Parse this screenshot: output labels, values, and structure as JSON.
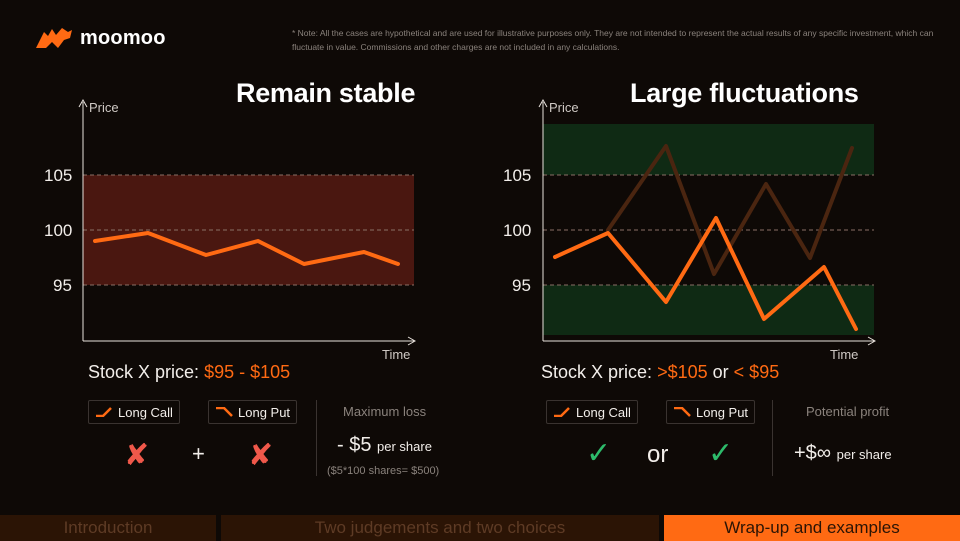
{
  "brand": {
    "name": "moomoo",
    "color": "#ff6a13"
  },
  "note": "* Note: All the cases are hypothetical and are used for illustrative purposes only. They are not intended to represent the actual results of any specific investment, which can fluctuate in value. Commissions and other charges are not included in any calculations.",
  "left": {
    "title": "Remain stable",
    "y_axis_label": "Price",
    "x_axis_label": "Time",
    "ticks": [
      "105",
      "100",
      "95"
    ],
    "range_prefix": "Stock X price:",
    "range_value": "$95 - $105",
    "long_call": "Long Call",
    "long_put": "Long Put",
    "operator": "+",
    "call_result": "✘",
    "put_result": "✘",
    "summary_head": "Maximum loss",
    "summary_value": "- $5",
    "summary_unit": "per share",
    "summary_sub": "($5*100 shares= $500)"
  },
  "right": {
    "title": "Large fluctuations",
    "y_axis_label": "Price",
    "x_axis_label": "Time",
    "ticks": [
      "105",
      "100",
      "95"
    ],
    "range_prefix": "Stock X price:",
    "range_gt": ">$105",
    "range_or": "or",
    "range_lt": "< $95",
    "long_call": "Long Call",
    "long_put": "Long Put",
    "operator": "or",
    "call_result": "✓",
    "put_result": "✓",
    "summary_head": "Potential profit",
    "summary_value": "+$∞",
    "summary_unit": "per share"
  },
  "footer": {
    "tabs": [
      {
        "label": "Introduction",
        "active": false
      },
      {
        "label": "Two judgements and two choices",
        "active": false
      },
      {
        "label": "Wrap-up and examples",
        "active": true
      }
    ]
  },
  "colors": {
    "accent": "#ff6a13",
    "cross": "#f0584a",
    "check": "#2dbb6b",
    "background": "#0e0906"
  }
}
